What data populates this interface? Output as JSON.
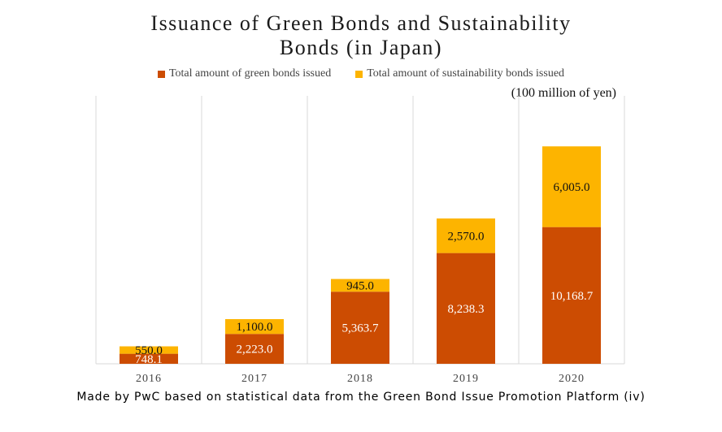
{
  "chart_data": {
    "type": "bar",
    "stacked": true,
    "title_line1": "Issuance of Green Bonds and Sustainability",
    "title_line2": "Bonds (in Japan)",
    "unit_label": "(100 million  of yen)",
    "categories": [
      "2016",
      "2017",
      "2018",
      "2019",
      "2020"
    ],
    "series": [
      {
        "name": "Total amount of green bonds issued",
        "color": "#cc4c02",
        "values": [
          748.1,
          2223.0,
          5363.7,
          8238.3,
          10168.7
        ],
        "labels": [
          "748.1",
          "2,223.0",
          "5,363.7",
          "8,238.3",
          "10,168.7"
        ]
      },
      {
        "name": "Total amount of sustainability bonds issued",
        "color": "#fdb400",
        "values": [
          550.0,
          1100.0,
          945.0,
          2570.0,
          6005.0
        ],
        "labels": [
          "550.0",
          "1,100.0",
          "945.0",
          "2,570.0",
          "6,005.0"
        ]
      }
    ],
    "ylim": [
      0,
      18000
    ],
    "grid": "vertical",
    "legend_position": "top"
  },
  "footnote": "Made by PwC based on statistical data from the Green Bond Issue Promotion Platform (iv)"
}
